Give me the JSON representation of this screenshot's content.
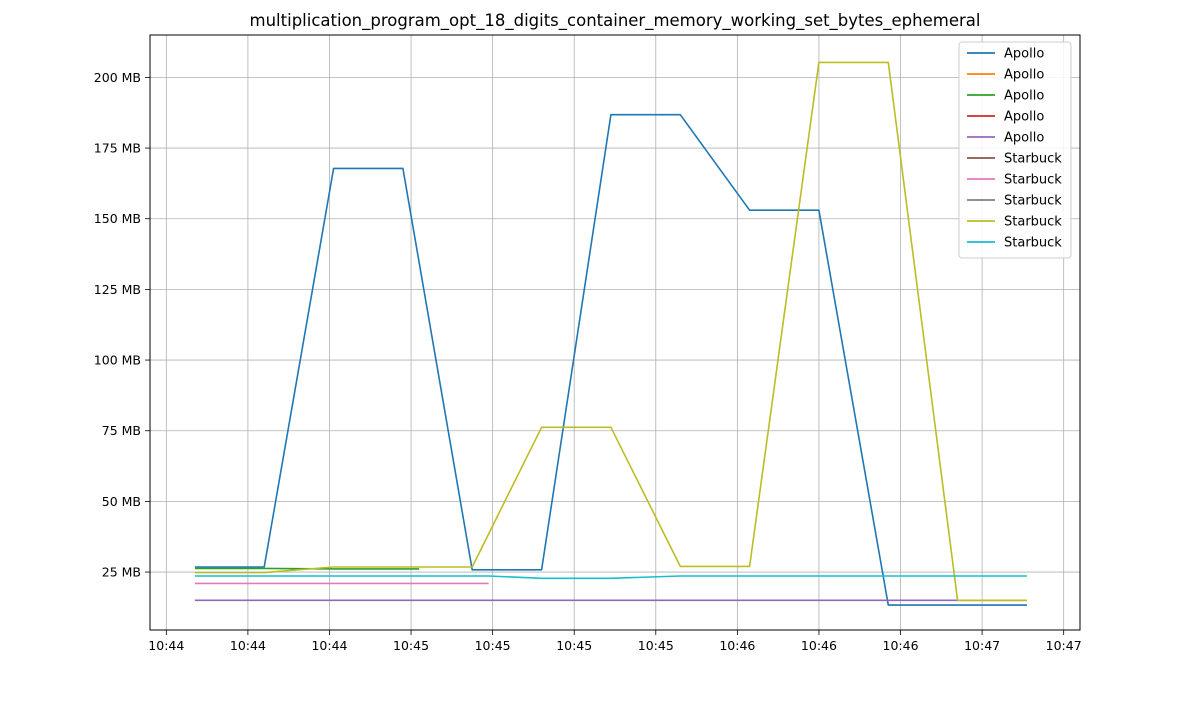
{
  "chart_data": {
    "type": "line",
    "title": "multiplication_program_opt_18_digits_container_memory_working_set_bytes_ephemeral",
    "xlabel": "",
    "ylabel": "",
    "x_ticks": [
      "10:44",
      "10:44",
      "10:44",
      "10:45",
      "10:45",
      "10:45",
      "10:45",
      "10:46",
      "10:46",
      "10:46",
      "10:47",
      "10:47"
    ],
    "x_tick_values": [
      0,
      1,
      2,
      3,
      4,
      5,
      6,
      7,
      8,
      9,
      10,
      11
    ],
    "xlim": [
      -0.2,
      11.2
    ],
    "y_ticks": [
      {
        "value": 25,
        "label": "25 MB"
      },
      {
        "value": 50,
        "label": "50 MB"
      },
      {
        "value": 75,
        "label": "75 MB"
      },
      {
        "value": 100,
        "label": "100 MB"
      },
      {
        "value": 125,
        "label": "125 MB"
      },
      {
        "value": 150,
        "label": "150 MB"
      },
      {
        "value": 175,
        "label": "175 MB"
      },
      {
        "value": 200,
        "label": "200 MB"
      }
    ],
    "ylim": [
      4.5,
      215
    ],
    "grid": true,
    "legend_position": "top-right",
    "series": [
      {
        "name": "Apollo",
        "color": "#1f77b4",
        "x": [
          0.35,
          1.2,
          2.05,
          2.9,
          3.75,
          4.6,
          5.45,
          6.3,
          7.15,
          8.0,
          8.85,
          9.7,
          10.55
        ],
        "values": [
          26.8,
          26.8,
          167.8,
          167.8,
          25.8,
          25.8,
          186.8,
          186.8,
          153.0,
          153.0,
          13.3,
          13.3,
          13.3
        ]
      },
      {
        "name": "Apollo",
        "color": "#ff7f0e",
        "x": [],
        "values": []
      },
      {
        "name": "Apollo",
        "color": "#2ca02c",
        "x": [
          0.35,
          1.2,
          2.05,
          3.1
        ],
        "values": [
          26.3,
          26.3,
          26.1,
          26.1
        ]
      },
      {
        "name": "Apollo",
        "color": "#d62728",
        "x": [],
        "values": []
      },
      {
        "name": "Apollo",
        "color": "#9467bd",
        "x": [
          0.35,
          10.55
        ],
        "values": [
          15.0,
          15.0
        ]
      },
      {
        "name": "Starbuck",
        "color": "#8c564b",
        "x": [],
        "values": []
      },
      {
        "name": "Starbuck",
        "color": "#e377c2",
        "x": [
          0.35,
          3.95
        ],
        "values": [
          21.0,
          21.0
        ]
      },
      {
        "name": "Starbuck",
        "color": "#7f7f7f",
        "x": [],
        "values": []
      },
      {
        "name": "Starbuck",
        "color": "#bcbd22",
        "x": [
          0.35,
          1.2,
          2.05,
          2.9,
          3.75,
          4.6,
          5.45,
          6.3,
          7.15,
          8.0,
          8.85,
          9.7,
          10.55
        ],
        "values": [
          24.8,
          24.8,
          26.8,
          26.8,
          26.8,
          76.2,
          76.2,
          27.0,
          27.0,
          205.3,
          205.3,
          15.0,
          15.0
        ]
      },
      {
        "name": "Starbuck",
        "color": "#17becf",
        "x": [
          0.35,
          3.95,
          4.6,
          5.45,
          6.3,
          7.15,
          8.0,
          8.85,
          9.7,
          10.55
        ],
        "values": [
          23.6,
          23.6,
          22.8,
          22.8,
          23.6,
          23.6,
          23.6,
          23.6,
          23.6,
          23.6
        ]
      }
    ]
  }
}
